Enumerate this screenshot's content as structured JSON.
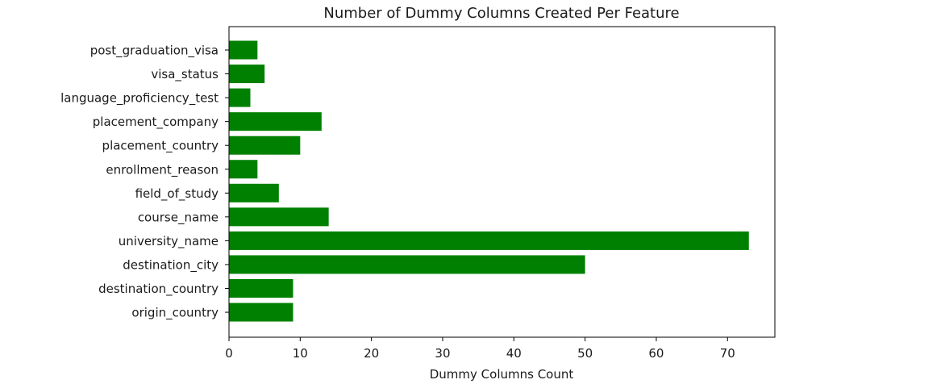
{
  "chart_data": {
    "type": "bar",
    "orientation": "horizontal",
    "title": "Number of Dummy Columns Created Per Feature",
    "xlabel": "Dummy Columns Count",
    "ylabel": "",
    "categories": [
      "origin_country",
      "destination_country",
      "destination_city",
      "university_name",
      "course_name",
      "field_of_study",
      "enrollment_reason",
      "placement_country",
      "placement_company",
      "language_proficiency_test",
      "visa_status",
      "post_graduation_visa"
    ],
    "values": [
      9,
      9,
      50,
      73,
      14,
      7,
      4,
      10,
      13,
      3,
      5,
      4
    ],
    "xlim": [
      0,
      76.65
    ],
    "xticks": [
      "0",
      "10",
      "20",
      "30",
      "40",
      "50",
      "60",
      "70"
    ],
    "grid": false,
    "bar_color": "#008000"
  }
}
